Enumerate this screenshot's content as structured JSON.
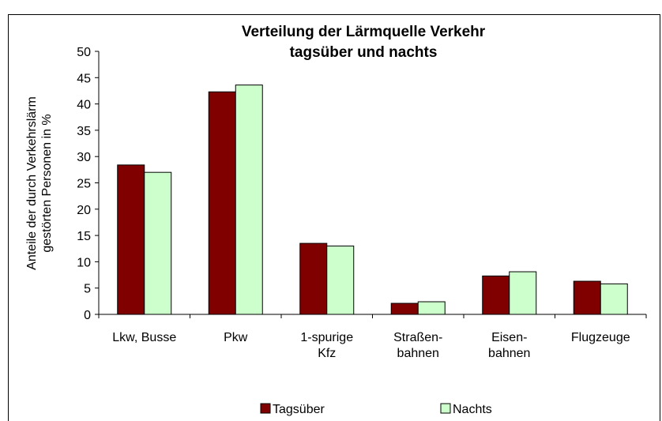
{
  "chart_data": {
    "type": "bar",
    "title": "Verteilung der Lärmquelle Verkehr\ntagsüber und nachts",
    "y_label": "Anteile der durch Verkehrslärm\ngestörten Personen in %",
    "categories": [
      "Lkw, Busse",
      "Pkw",
      "1-spurige\nKfz",
      "Straßen-\nbahnen",
      "Eisen-\nbahnen",
      "Flugzeuge"
    ],
    "series": [
      {
        "name": "Tagsüber",
        "color": "#800000",
        "values": [
          28.4,
          42.3,
          13.5,
          2.1,
          7.3,
          6.3
        ]
      },
      {
        "name": "Nachts",
        "color": "#ccffcc",
        "values": [
          27.0,
          43.6,
          13.0,
          2.4,
          8.1,
          5.8
        ]
      }
    ],
    "ylim": [
      0,
      50
    ],
    "yticks": [
      0,
      5,
      10,
      15,
      20,
      25,
      30,
      35,
      40,
      45,
      50
    ],
    "grid": false,
    "legend": "bottom"
  }
}
